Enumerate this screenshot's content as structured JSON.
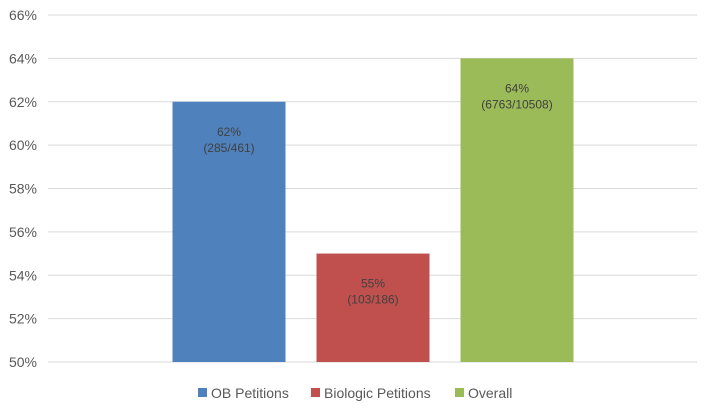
{
  "chart_data": {
    "type": "bar",
    "categories": [
      "OB Petitions",
      "Biologic Petitions",
      "Overall"
    ],
    "values": [
      62,
      55,
      64
    ],
    "value_labels": [
      "62%",
      "55%",
      "64%"
    ],
    "sub_labels": [
      "(285/461)",
      "(103/186)",
      "(6763/10508)"
    ],
    "colors": [
      "#4f81bd",
      "#c0504d",
      "#9bbb59"
    ],
    "ylim": [
      50,
      66
    ],
    "y_ticks": [
      50,
      52,
      54,
      56,
      58,
      60,
      62,
      64,
      66
    ],
    "y_tick_labels": [
      "50%",
      "52%",
      "54%",
      "56%",
      "58%",
      "60%",
      "62%",
      "64%",
      "66%"
    ],
    "grid": true,
    "legend": {
      "position": "bottom",
      "entries": [
        "OB Petitions",
        "Biologic Petitions",
        "Overall"
      ]
    },
    "title": "",
    "xlabel": "",
    "ylabel": ""
  }
}
